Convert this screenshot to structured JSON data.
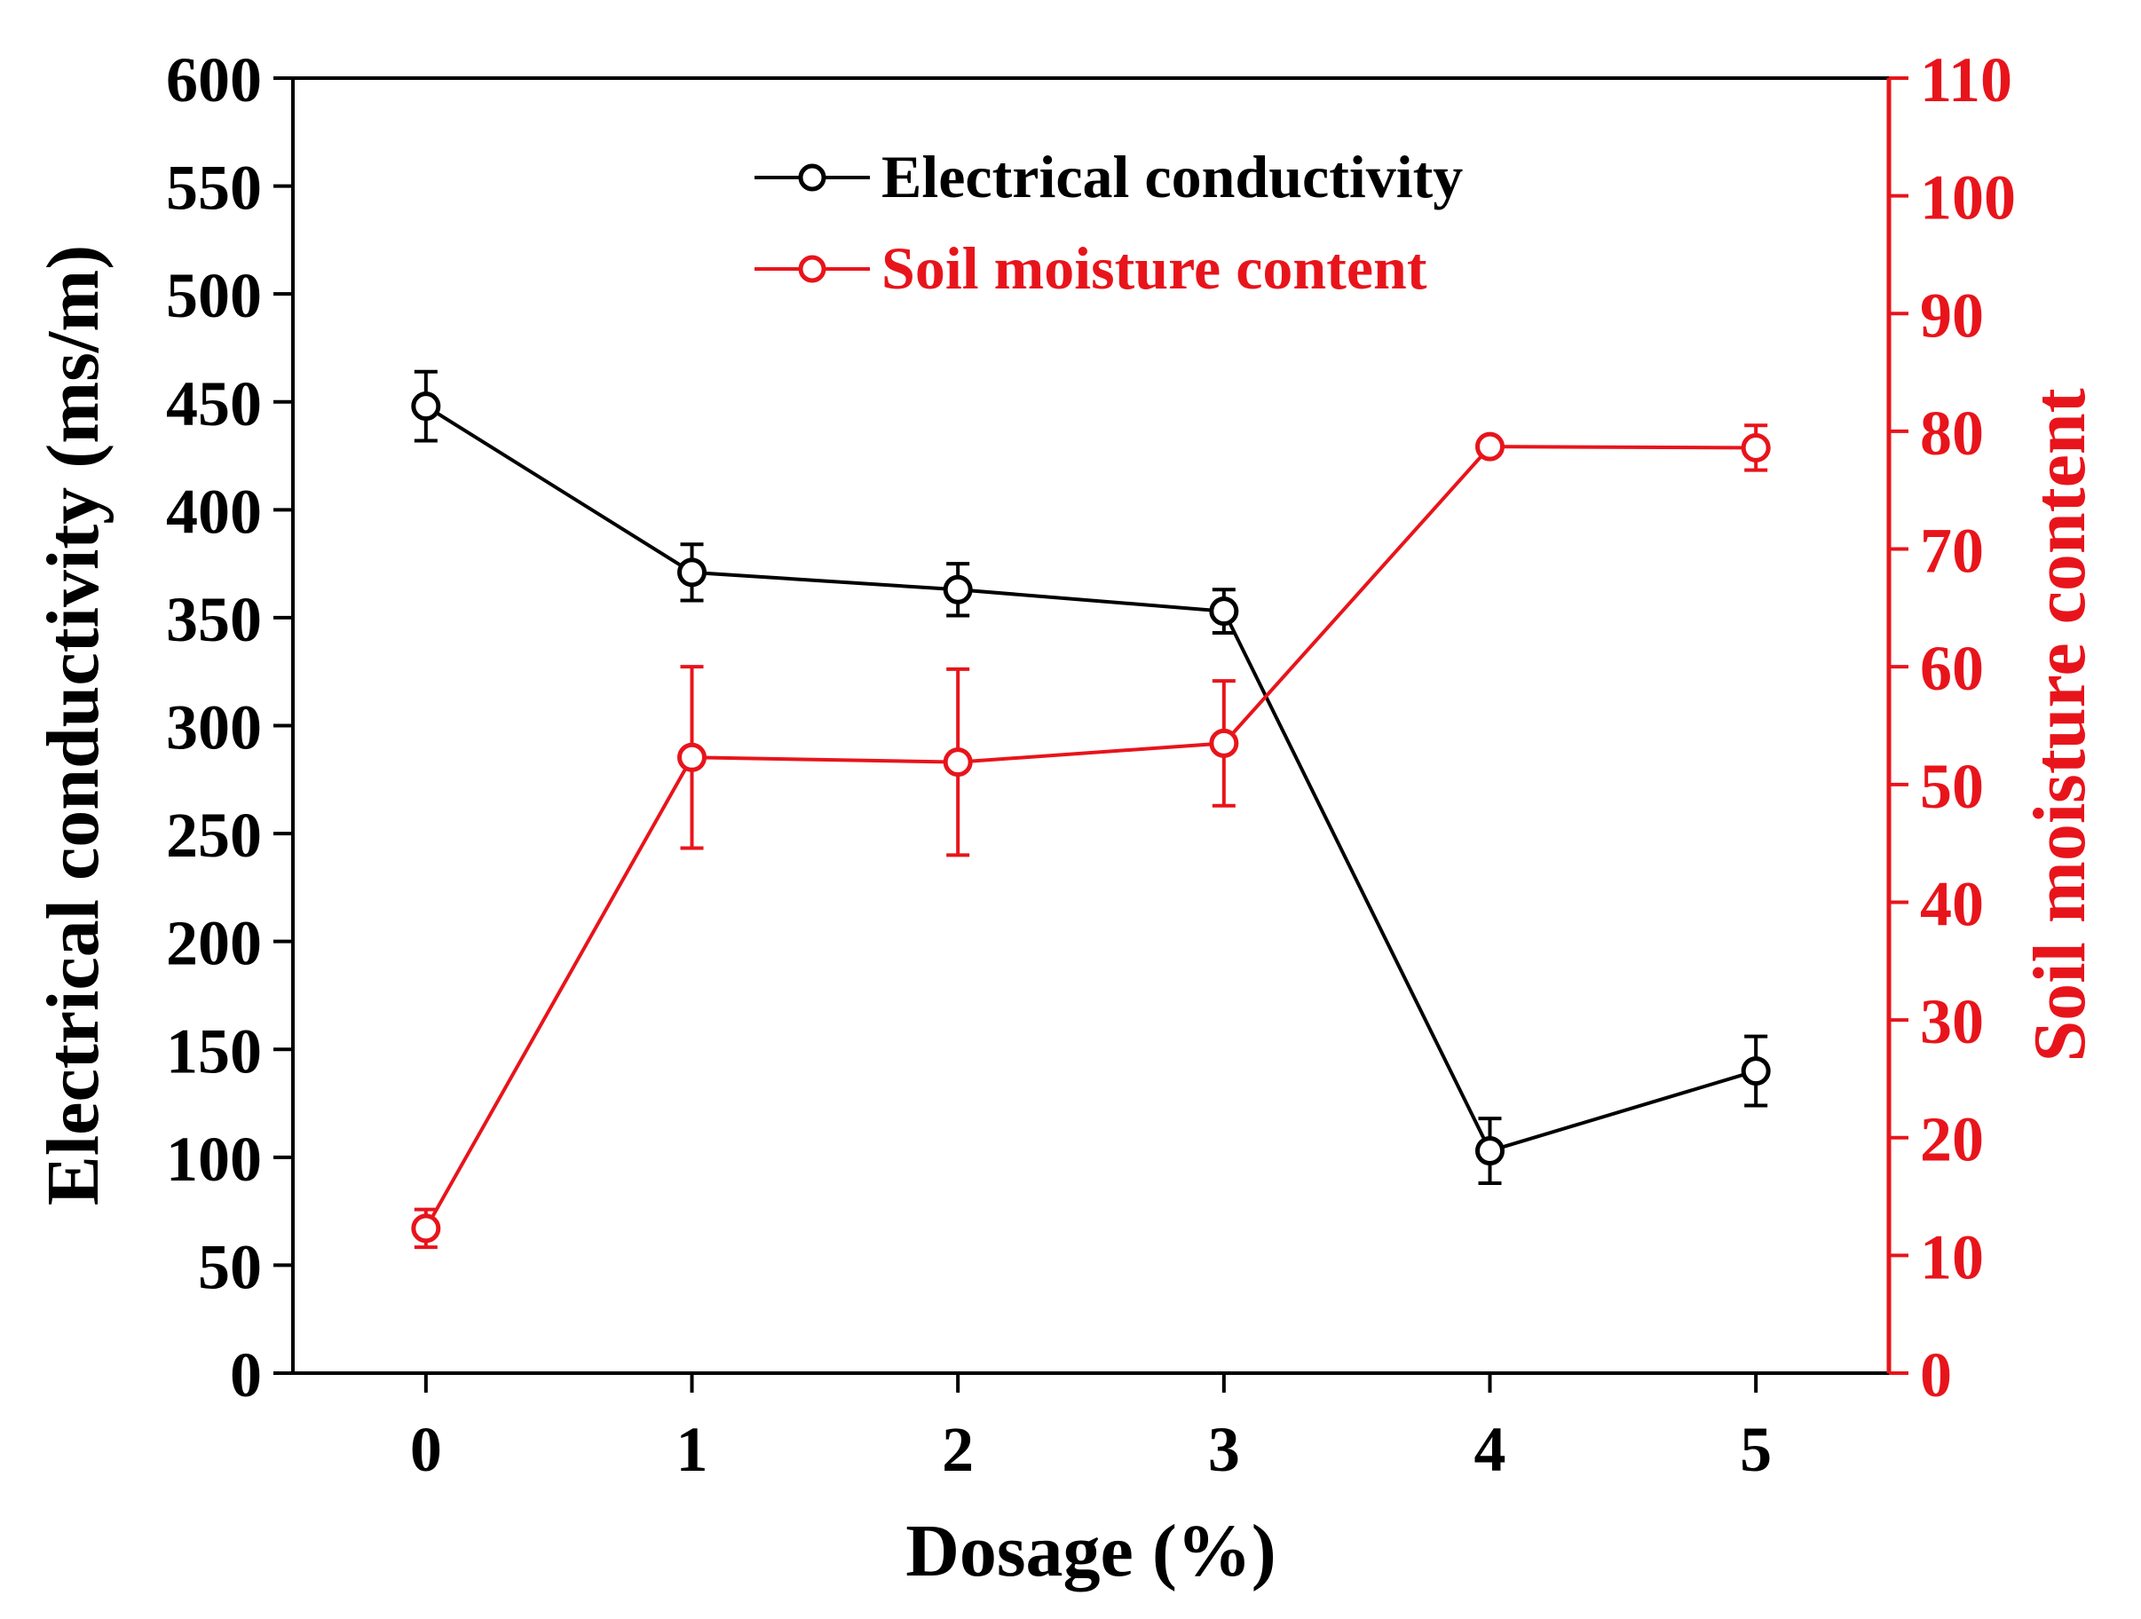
{
  "chart_data": {
    "type": "line",
    "x": [
      0,
      1,
      2,
      3,
      4,
      5
    ],
    "xlabel": "Dosage (%)",
    "xlim": [
      -0.5,
      5.5
    ],
    "x_tick_labels": [
      "0",
      "1",
      "2",
      "3",
      "4",
      "5"
    ],
    "left_axis": {
      "label": "Electrical conductivity (ms/m)",
      "range": [
        0,
        600
      ],
      "tick_labels": [
        "0",
        "50",
        "100",
        "150",
        "200",
        "250",
        "300",
        "350",
        "400",
        "450",
        "500",
        "550",
        "600"
      ]
    },
    "right_axis": {
      "label": "Soil moisture content",
      "range": [
        0,
        110
      ],
      "tick_labels": [
        "0",
        "10",
        "20",
        "30",
        "40",
        "50",
        "60",
        "70",
        "80",
        "90",
        "100",
        "110"
      ]
    },
    "series": [
      {
        "name": "Electrical conductivity",
        "axis": "left",
        "color": "#000000",
        "values": [
          448,
          371,
          363,
          353,
          103,
          140
        ],
        "errors": [
          16,
          13,
          12,
          10,
          15,
          16
        ]
      },
      {
        "name": "Soil moisture content",
        "axis": "right",
        "color": "#e8141b",
        "values": [
          12.3,
          52.3,
          51.9,
          53.5,
          78.7,
          78.6
        ],
        "errors": [
          1.6,
          7.7,
          7.9,
          5.3,
          0.6,
          1.9
        ]
      }
    ],
    "legend": {
      "position": "top-center",
      "entries": [
        "Electrical conductivity",
        "Soil moisture content"
      ]
    }
  }
}
